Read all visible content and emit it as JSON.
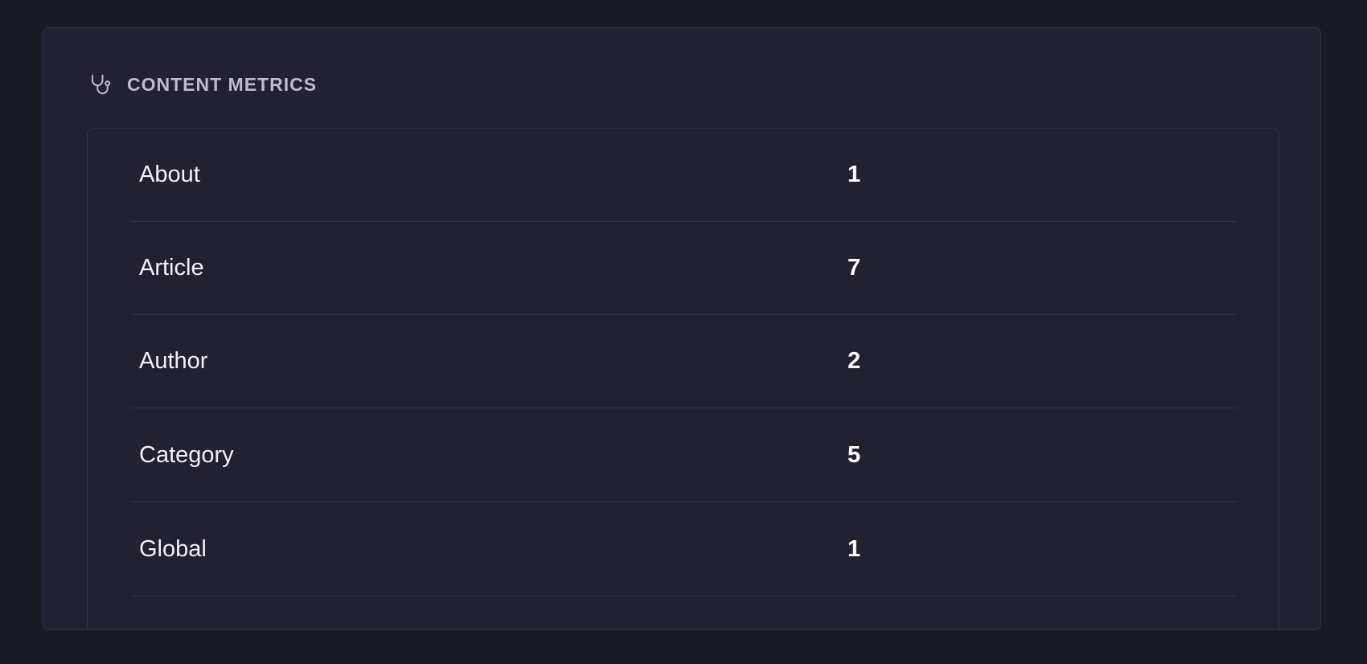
{
  "panel": {
    "title": "CONTENT METRICS",
    "icon": "stethoscope-icon",
    "rows": [
      {
        "label": "About",
        "value": "1"
      },
      {
        "label": "Article",
        "value": "7"
      },
      {
        "label": "Author",
        "value": "2"
      },
      {
        "label": "Category",
        "value": "5"
      },
      {
        "label": "Global",
        "value": "1"
      }
    ]
  }
}
